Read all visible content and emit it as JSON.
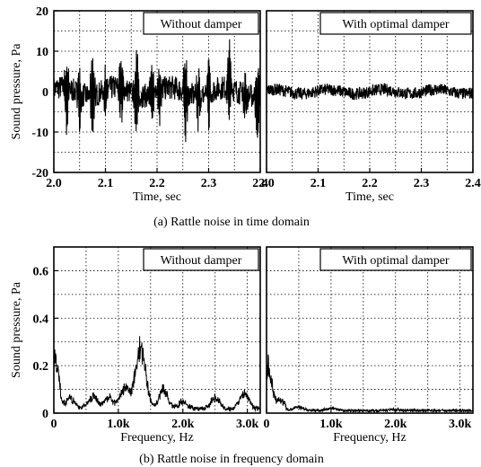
{
  "captions": {
    "time": "(a) Rattle noise in time domain",
    "freq": "(b) Rattle noise in frequency domain"
  },
  "chart_data": [
    {
      "id": "time-without",
      "type": "line",
      "legend": "Without damper",
      "xlabel": "Time, sec",
      "ylabel": "Sound pressure, Pa",
      "xlim": [
        2.0,
        2.4
      ],
      "ylim": [
        -20,
        20
      ],
      "xticks": [
        "2.0",
        "2.1",
        "2.2",
        "2.3",
        "2.4"
      ],
      "yticks": [
        "-20",
        "-10",
        "0",
        "10",
        "20"
      ],
      "grid": true,
      "signal": {
        "baseline_amplitude": 3,
        "spikes": [
          {
            "x": 2.025,
            "min": -14,
            "max": 8
          },
          {
            "x": 2.05,
            "min": -7,
            "max": 6
          },
          {
            "x": 2.075,
            "min": -11,
            "max": 11
          },
          {
            "x": 2.1,
            "min": -8,
            "max": 6
          },
          {
            "x": 2.13,
            "min": -9,
            "max": 9
          },
          {
            "x": 2.16,
            "min": -11,
            "max": 13
          },
          {
            "x": 2.19,
            "min": -9,
            "max": 7
          },
          {
            "x": 2.205,
            "min": -8,
            "max": 8
          },
          {
            "x": 2.255,
            "min": -12,
            "max": 10
          },
          {
            "x": 2.28,
            "min": -8,
            "max": 6
          },
          {
            "x": 2.3,
            "min": -9,
            "max": 9
          },
          {
            "x": 2.34,
            "min": -10,
            "max": 12
          },
          {
            "x": 2.37,
            "min": -7,
            "max": 7
          },
          {
            "x": 2.395,
            "min": -14,
            "max": 8
          }
        ]
      }
    },
    {
      "id": "time-with",
      "type": "line",
      "legend": "With optimal damper",
      "xlabel": "Time, sec",
      "ylabel": "",
      "xlim": [
        2.0,
        2.4
      ],
      "ylim": [
        -20,
        20
      ],
      "xticks": [
        "2.0",
        "2.1",
        "2.2",
        "2.3",
        "2.4"
      ],
      "yticks": [],
      "grid": true,
      "signal": {
        "baseline_amplitude": 1.5,
        "spikes": []
      }
    },
    {
      "id": "freq-without",
      "type": "line",
      "legend": "Without damper",
      "xlabel": "Frequency, Hz",
      "ylabel": "Sound pressure, Pa",
      "xlim": [
        0,
        3200
      ],
      "ylim": [
        0,
        0.7
      ],
      "xticks": [
        "0",
        "1.0k",
        "2.0k",
        "3.0k"
      ],
      "yticks": [
        "0",
        "0.2",
        "0.4",
        "0.6"
      ],
      "grid": true,
      "peaks": [
        {
          "f": 20,
          "a": 0.25
        },
        {
          "f": 80,
          "a": 0.12
        },
        {
          "f": 250,
          "a": 0.06
        },
        {
          "f": 600,
          "a": 0.07
        },
        {
          "f": 850,
          "a": 0.06
        },
        {
          "f": 1100,
          "a": 0.11
        },
        {
          "f": 1300,
          "a": 0.16
        },
        {
          "f": 1380,
          "a": 0.21
        },
        {
          "f": 1700,
          "a": 0.1
        },
        {
          "f": 2000,
          "a": 0.04
        },
        {
          "f": 2500,
          "a": 0.06
        },
        {
          "f": 2950,
          "a": 0.08
        }
      ]
    },
    {
      "id": "freq-with",
      "type": "line",
      "legend": "With optimal damper",
      "xlabel": "Frequency, Hz",
      "ylabel": "",
      "xlim": [
        0,
        3200
      ],
      "ylim": [
        0,
        0.7
      ],
      "xticks": [
        "0",
        "1.0k",
        "2.0k",
        "3.0k"
      ],
      "yticks": [],
      "grid": true,
      "peaks": [
        {
          "f": 20,
          "a": 0.22
        },
        {
          "f": 80,
          "a": 0.1
        },
        {
          "f": 200,
          "a": 0.05
        },
        {
          "f": 500,
          "a": 0.03
        },
        {
          "f": 1000,
          "a": 0.02
        },
        {
          "f": 2000,
          "a": 0.01
        }
      ]
    }
  ]
}
